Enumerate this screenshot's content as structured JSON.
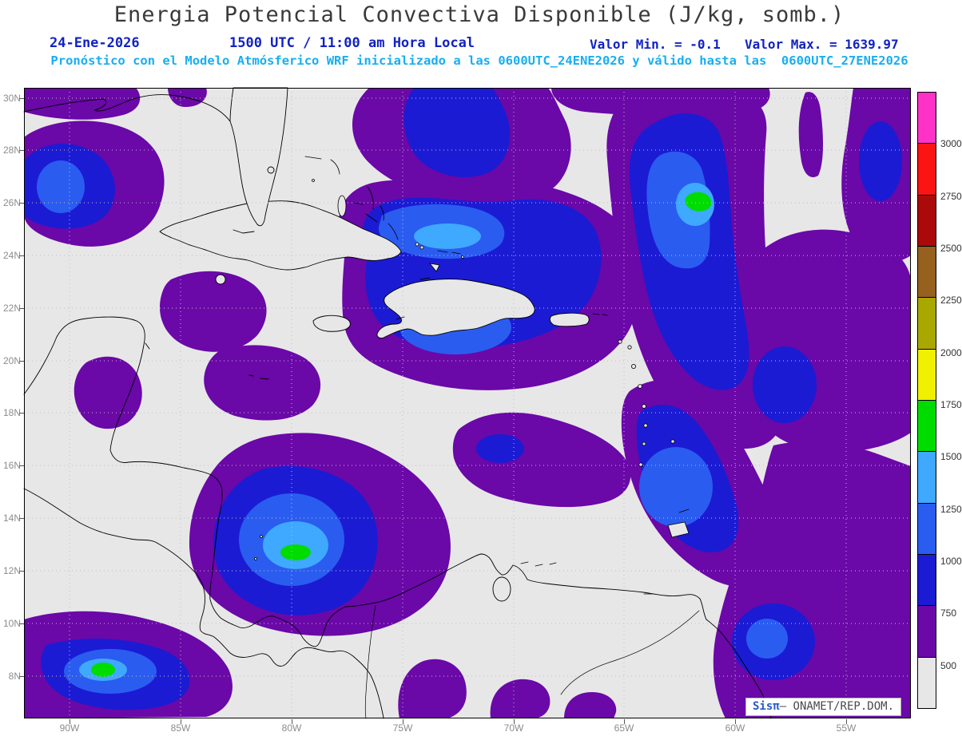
{
  "title": "Energia Potencial Convectiva Disponible (J/kg, somb.)",
  "header": {
    "date": "24-Ene-2026",
    "time_local": "1500 UTC / 11:00 am Hora Local",
    "value_min": "Valor Min. = -0.1",
    "value_max": "Valor Max. = 1639.97",
    "model_info": "Pronóstico con el Modelo Atmósferico WRF inicializado a las 0600UTC_24ENE2026 y válido hasta las  0600UTC_27ENE2026"
  },
  "watermark": {
    "brand": "Sisπ",
    "org": "– ONAMET/REP.DOM."
  },
  "chart_data": {
    "type": "heatmap",
    "subtype": "filled-contour-weather-map",
    "variable": "Energia Potencial Convectiva Disponible (CAPE)",
    "units": "J/kg",
    "value_min": -0.1,
    "value_max": 1639.97,
    "region": "Gulf of Mexico / Caribbean / Northern South America",
    "lat_ticks": [
      "30N",
      "28N",
      "26N",
      "24N",
      "22N",
      "20N",
      "18N",
      "16N",
      "14N",
      "12N",
      "10N",
      "8N"
    ],
    "lon_ticks": [
      "90W",
      "85W",
      "80W",
      "75W",
      "70W",
      "65W",
      "60W",
      "55W"
    ],
    "colorbar_levels_bottom_to_top": [
      "500",
      "750",
      "1000",
      "1250",
      "1500",
      "1750",
      "2000",
      "2250",
      "2500",
      "2750",
      "3000"
    ],
    "colorbar_colors_top_to_bottom": [
      "#ff32c8",
      "#fa1414",
      "#aa0a0a",
      "#96601e",
      "#a8a800",
      "#f0f000",
      "#00dc00",
      "#3fa8ff",
      "#2a5cf0",
      "#1b1bd4",
      "#6a08a8",
      "#e7e7e7"
    ],
    "palette": {
      "background_lt_500": "#e7e7e7",
      "level_500_750": "#6a08a8",
      "level_750_1000": "#1b1bd4",
      "level_1000_1250": "#2a5cf0",
      "level_1250_1500": "#3fa8ff",
      "level_1500_1750": "#00dc00"
    },
    "notable_maxima_gt_1500": [
      {
        "approx_location": "26N 60W"
      },
      {
        "approx_location": "13N 80W"
      },
      {
        "approx_location": "8.5N 89W"
      }
    ]
  }
}
